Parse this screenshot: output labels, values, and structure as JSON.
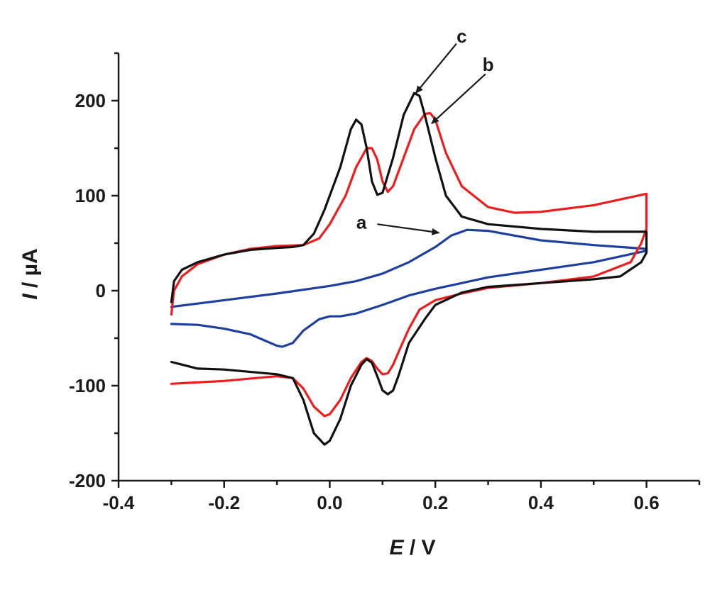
{
  "chart_data": {
    "type": "line",
    "xlabel": {
      "symbol": "E",
      "unit": " / V"
    },
    "ylabel": {
      "symbol": "I",
      "unit": " / µA"
    },
    "xlim": [
      -0.4,
      0.7
    ],
    "ylim": [
      -200,
      250
    ],
    "x_ticks": [
      -0.4,
      -0.2,
      0.0,
      0.2,
      0.4,
      0.6
    ],
    "x_tick_labels": [
      "-0.4",
      "-0.2",
      "0.0",
      "0.2",
      "0.4",
      "0.6"
    ],
    "y_ticks": [
      -200,
      -100,
      0,
      100,
      200
    ],
    "y_tick_labels": [
      "-200",
      "-100",
      "0",
      "100",
      "200"
    ],
    "grid": false,
    "legend": "none",
    "series": [
      {
        "label": "a",
        "color": "#1f3fa0",
        "points": [
          [
            -0.3,
            -17
          ],
          [
            -0.2,
            -10
          ],
          [
            -0.1,
            -3
          ],
          [
            0.0,
            5
          ],
          [
            0.05,
            10
          ],
          [
            0.1,
            18
          ],
          [
            0.15,
            30
          ],
          [
            0.2,
            46
          ],
          [
            0.23,
            58
          ],
          [
            0.26,
            64
          ],
          [
            0.3,
            63
          ],
          [
            0.35,
            58
          ],
          [
            0.4,
            53
          ],
          [
            0.5,
            48
          ],
          [
            0.6,
            44
          ],
          [
            0.6,
            42
          ],
          [
            0.5,
            30
          ],
          [
            0.4,
            22
          ],
          [
            0.3,
            14
          ],
          [
            0.2,
            2
          ],
          [
            0.15,
            -5
          ],
          [
            0.1,
            -15
          ],
          [
            0.05,
            -24
          ],
          [
            0.02,
            -27
          ],
          [
            0.0,
            -27
          ],
          [
            -0.02,
            -30
          ],
          [
            -0.05,
            -42
          ],
          [
            -0.07,
            -55
          ],
          [
            -0.09,
            -59
          ],
          [
            -0.1,
            -58
          ],
          [
            -0.15,
            -46
          ],
          [
            -0.2,
            -40
          ],
          [
            -0.25,
            -36
          ],
          [
            -0.3,
            -35
          ]
        ]
      },
      {
        "label": "b",
        "color": "#ee1c1c",
        "points": [
          [
            -0.3,
            -25
          ],
          [
            -0.295,
            0
          ],
          [
            -0.28,
            15
          ],
          [
            -0.25,
            28
          ],
          [
            -0.2,
            38
          ],
          [
            -0.15,
            44
          ],
          [
            -0.1,
            47
          ],
          [
            -0.05,
            48
          ],
          [
            -0.02,
            55
          ],
          [
            0.0,
            70
          ],
          [
            0.03,
            100
          ],
          [
            0.05,
            130
          ],
          [
            0.07,
            150
          ],
          [
            0.08,
            150
          ],
          [
            0.09,
            138
          ],
          [
            0.1,
            115
          ],
          [
            0.11,
            104
          ],
          [
            0.12,
            110
          ],
          [
            0.14,
            140
          ],
          [
            0.16,
            170
          ],
          [
            0.18,
            186
          ],
          [
            0.19,
            187
          ],
          [
            0.2,
            180
          ],
          [
            0.22,
            145
          ],
          [
            0.25,
            110
          ],
          [
            0.3,
            88
          ],
          [
            0.35,
            82
          ],
          [
            0.4,
            83
          ],
          [
            0.5,
            90
          ],
          [
            0.6,
            102
          ],
          [
            0.6,
            65
          ],
          [
            0.59,
            50
          ],
          [
            0.57,
            30
          ],
          [
            0.5,
            15
          ],
          [
            0.4,
            8
          ],
          [
            0.3,
            3
          ],
          [
            0.25,
            -3
          ],
          [
            0.2,
            -10
          ],
          [
            0.17,
            -20
          ],
          [
            0.15,
            -40
          ],
          [
            0.13,
            -65
          ],
          [
            0.12,
            -78
          ],
          [
            0.11,
            -87
          ],
          [
            0.1,
            -88
          ],
          [
            0.09,
            -82
          ],
          [
            0.08,
            -74
          ],
          [
            0.07,
            -71
          ],
          [
            0.06,
            -75
          ],
          [
            0.04,
            -92
          ],
          [
            0.02,
            -115
          ],
          [
            0.0,
            -130
          ],
          [
            -0.01,
            -132
          ],
          [
            -0.03,
            -122
          ],
          [
            -0.05,
            -103
          ],
          [
            -0.07,
            -92
          ],
          [
            -0.1,
            -90
          ],
          [
            -0.2,
            -95
          ],
          [
            -0.3,
            -98
          ]
        ]
      },
      {
        "label": "c",
        "color": "#111111",
        "points": [
          [
            -0.3,
            -12
          ],
          [
            -0.295,
            10
          ],
          [
            -0.28,
            22
          ],
          [
            -0.25,
            30
          ],
          [
            -0.2,
            38
          ],
          [
            -0.15,
            43
          ],
          [
            -0.1,
            45
          ],
          [
            -0.07,
            46
          ],
          [
            -0.05,
            48
          ],
          [
            -0.03,
            60
          ],
          [
            -0.01,
            85
          ],
          [
            0.02,
            130
          ],
          [
            0.04,
            170
          ],
          [
            0.05,
            180
          ],
          [
            0.06,
            175
          ],
          [
            0.07,
            150
          ],
          [
            0.08,
            115
          ],
          [
            0.09,
            101
          ],
          [
            0.1,
            103
          ],
          [
            0.12,
            140
          ],
          [
            0.14,
            185
          ],
          [
            0.16,
            208
          ],
          [
            0.17,
            205
          ],
          [
            0.18,
            185
          ],
          [
            0.2,
            140
          ],
          [
            0.22,
            100
          ],
          [
            0.25,
            78
          ],
          [
            0.3,
            70
          ],
          [
            0.4,
            65
          ],
          [
            0.5,
            62
          ],
          [
            0.6,
            62
          ],
          [
            0.6,
            40
          ],
          [
            0.59,
            30
          ],
          [
            0.55,
            15
          ],
          [
            0.5,
            12
          ],
          [
            0.4,
            8
          ],
          [
            0.3,
            4
          ],
          [
            0.25,
            -2
          ],
          [
            0.2,
            -15
          ],
          [
            0.18,
            -30
          ],
          [
            0.15,
            -55
          ],
          [
            0.13,
            -90
          ],
          [
            0.12,
            -105
          ],
          [
            0.11,
            -109
          ],
          [
            0.1,
            -105
          ],
          [
            0.09,
            -90
          ],
          [
            0.08,
            -76
          ],
          [
            0.07,
            -72
          ],
          [
            0.06,
            -78
          ],
          [
            0.04,
            -100
          ],
          [
            0.02,
            -135
          ],
          [
            0.0,
            -158
          ],
          [
            -0.01,
            -162
          ],
          [
            -0.03,
            -150
          ],
          [
            -0.05,
            -115
          ],
          [
            -0.07,
            -92
          ],
          [
            -0.1,
            -88
          ],
          [
            -0.2,
            -83
          ],
          [
            -0.25,
            -82
          ],
          [
            -0.3,
            -75
          ]
        ]
      }
    ],
    "annotations": [
      {
        "text": "a",
        "label_at": [
          0.06,
          72
        ],
        "arrow_from": [
          0.09,
          70
        ],
        "arrow_to": [
          0.207,
          61
        ]
      },
      {
        "text": "b",
        "label_at": [
          0.3,
          238
        ],
        "arrow_from": [
          0.295,
          228
        ],
        "arrow_to": [
          0.193,
          176
        ]
      },
      {
        "text": "c",
        "label_at": [
          0.25,
          268
        ],
        "arrow_from": [
          0.24,
          260
        ],
        "arrow_to": [
          0.163,
          208
        ]
      }
    ]
  }
}
